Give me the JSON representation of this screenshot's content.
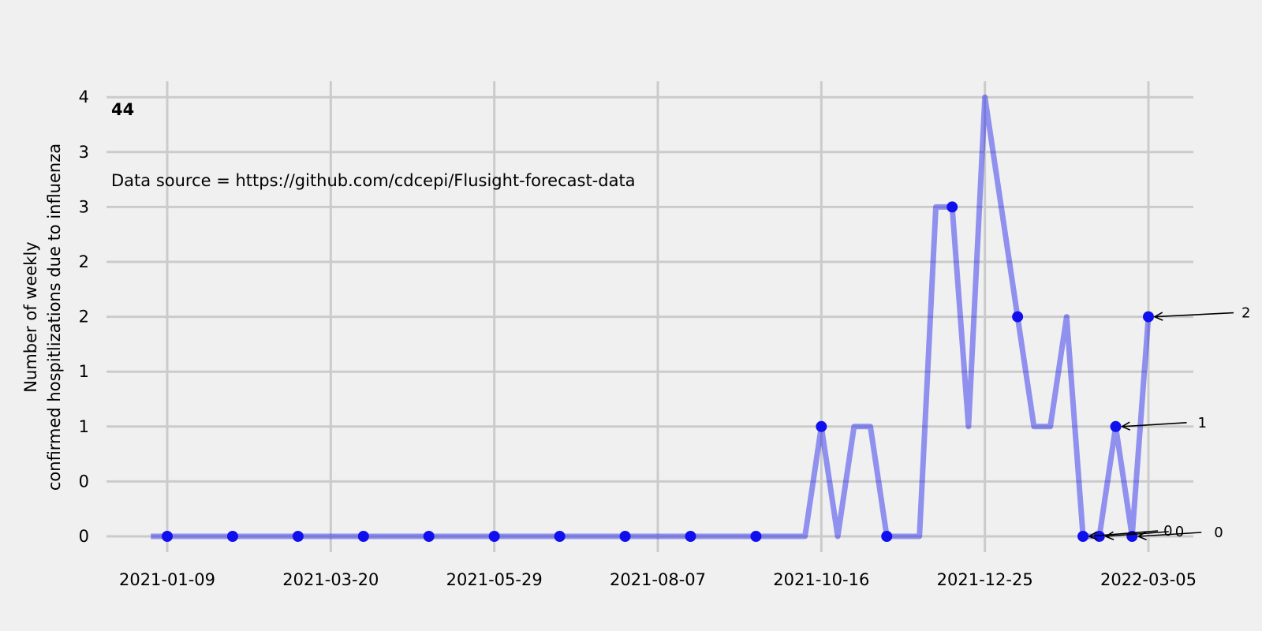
{
  "chart_data": {
    "type": "line",
    "panel_label": "44",
    "note": "Data source = https://github.com/cdcepi/Flusight-forecast-data",
    "ylabel_line1": "Number of weekly",
    "ylabel_line2": "confirmed hospitlizations due to influenza",
    "xlabel": "",
    "title": "",
    "x_ticks": [
      "2021-01-09",
      "2021-03-20",
      "2021-05-29",
      "2021-08-07",
      "2021-10-16",
      "2021-12-25",
      "2022-03-05"
    ],
    "y_tick_labels": [
      "0",
      "0",
      "1",
      "1",
      "2",
      "2",
      "3",
      "3",
      "4"
    ],
    "ylim": [
      -0.25,
      4.25
    ],
    "grid": true,
    "line_color": "#0000ee",
    "marker_color": "#1010ee",
    "series": [
      {
        "values": [
          [
            "2021-01-02",
            0
          ],
          [
            "2021-01-09",
            0
          ],
          [
            "2021-01-16",
            0
          ],
          [
            "2021-01-23",
            0
          ],
          [
            "2021-01-30",
            0
          ],
          [
            "2021-02-06",
            0
          ],
          [
            "2021-02-13",
            0
          ],
          [
            "2021-02-20",
            0
          ],
          [
            "2021-02-27",
            0
          ],
          [
            "2021-03-06",
            0
          ],
          [
            "2021-03-13",
            0
          ],
          [
            "2021-03-20",
            0
          ],
          [
            "2021-03-27",
            0
          ],
          [
            "2021-04-03",
            0
          ],
          [
            "2021-04-10",
            0
          ],
          [
            "2021-04-17",
            0
          ],
          [
            "2021-04-24",
            0
          ],
          [
            "2021-05-01",
            0
          ],
          [
            "2021-05-08",
            0
          ],
          [
            "2021-05-15",
            0
          ],
          [
            "2021-05-22",
            0
          ],
          [
            "2021-05-29",
            0
          ],
          [
            "2021-06-05",
            0
          ],
          [
            "2021-06-12",
            0
          ],
          [
            "2021-06-19",
            0
          ],
          [
            "2021-06-26",
            0
          ],
          [
            "2021-07-03",
            0
          ],
          [
            "2021-07-10",
            0
          ],
          [
            "2021-07-17",
            0
          ],
          [
            "2021-07-24",
            0
          ],
          [
            "2021-07-31",
            0
          ],
          [
            "2021-08-07",
            0
          ],
          [
            "2021-08-14",
            0
          ],
          [
            "2021-08-21",
            0
          ],
          [
            "2021-08-28",
            0
          ],
          [
            "2021-09-04",
            0
          ],
          [
            "2021-09-11",
            0
          ],
          [
            "2021-09-18",
            0
          ],
          [
            "2021-09-25",
            0
          ],
          [
            "2021-10-02",
            0
          ],
          [
            "2021-10-09",
            0
          ],
          [
            "2021-10-16",
            1
          ],
          [
            "2021-10-23",
            0
          ],
          [
            "2021-10-30",
            1
          ],
          [
            "2021-11-06",
            1
          ],
          [
            "2021-11-13",
            0
          ],
          [
            "2021-11-20",
            0
          ],
          [
            "2021-11-27",
            0
          ],
          [
            "2021-12-04",
            3
          ],
          [
            "2021-12-11",
            3
          ],
          [
            "2021-12-18",
            1
          ],
          [
            "2021-12-25",
            4
          ],
          [
            "2022-01-01",
            3
          ],
          [
            "2022-01-08",
            2
          ],
          [
            "2022-01-15",
            1
          ],
          [
            "2022-01-22",
            1
          ],
          [
            "2022-01-29",
            2
          ],
          [
            "2022-02-05",
            0
          ],
          [
            "2022-02-12",
            0
          ],
          [
            "2022-02-19",
            1
          ],
          [
            "2022-02-26",
            0
          ],
          [
            "2022-03-05",
            2
          ]
        ]
      }
    ],
    "highlighted_points": [
      [
        "2021-01-09",
        0
      ],
      [
        "2021-02-06",
        0
      ],
      [
        "2021-03-06",
        0
      ],
      [
        "2021-04-03",
        0
      ],
      [
        "2021-05-01",
        0
      ],
      [
        "2021-05-29",
        0
      ],
      [
        "2021-06-26",
        0
      ],
      [
        "2021-07-24",
        0
      ],
      [
        "2021-08-21",
        0
      ],
      [
        "2021-09-18",
        0
      ],
      [
        "2021-10-16",
        1
      ],
      [
        "2021-11-13",
        0
      ],
      [
        "2021-12-11",
        3
      ],
      [
        "2022-01-08",
        2
      ],
      [
        "2022-02-05",
        0
      ],
      [
        "2022-02-12",
        0
      ],
      [
        "2022-02-19",
        1
      ],
      [
        "2022-02-26",
        0
      ],
      [
        "2022-03-05",
        2
      ]
    ],
    "annotations": [
      {
        "text": "2",
        "x": "2022-03-05",
        "y": 2
      },
      {
        "text": "1",
        "x": "2022-02-19",
        "y": 1
      },
      {
        "text": "0",
        "x": "2022-02-26",
        "y": 0
      },
      {
        "text": "0",
        "x": "2022-02-12",
        "y": 0
      },
      {
        "text": "0",
        "x": "2022-02-05",
        "y": 0
      }
    ]
  }
}
